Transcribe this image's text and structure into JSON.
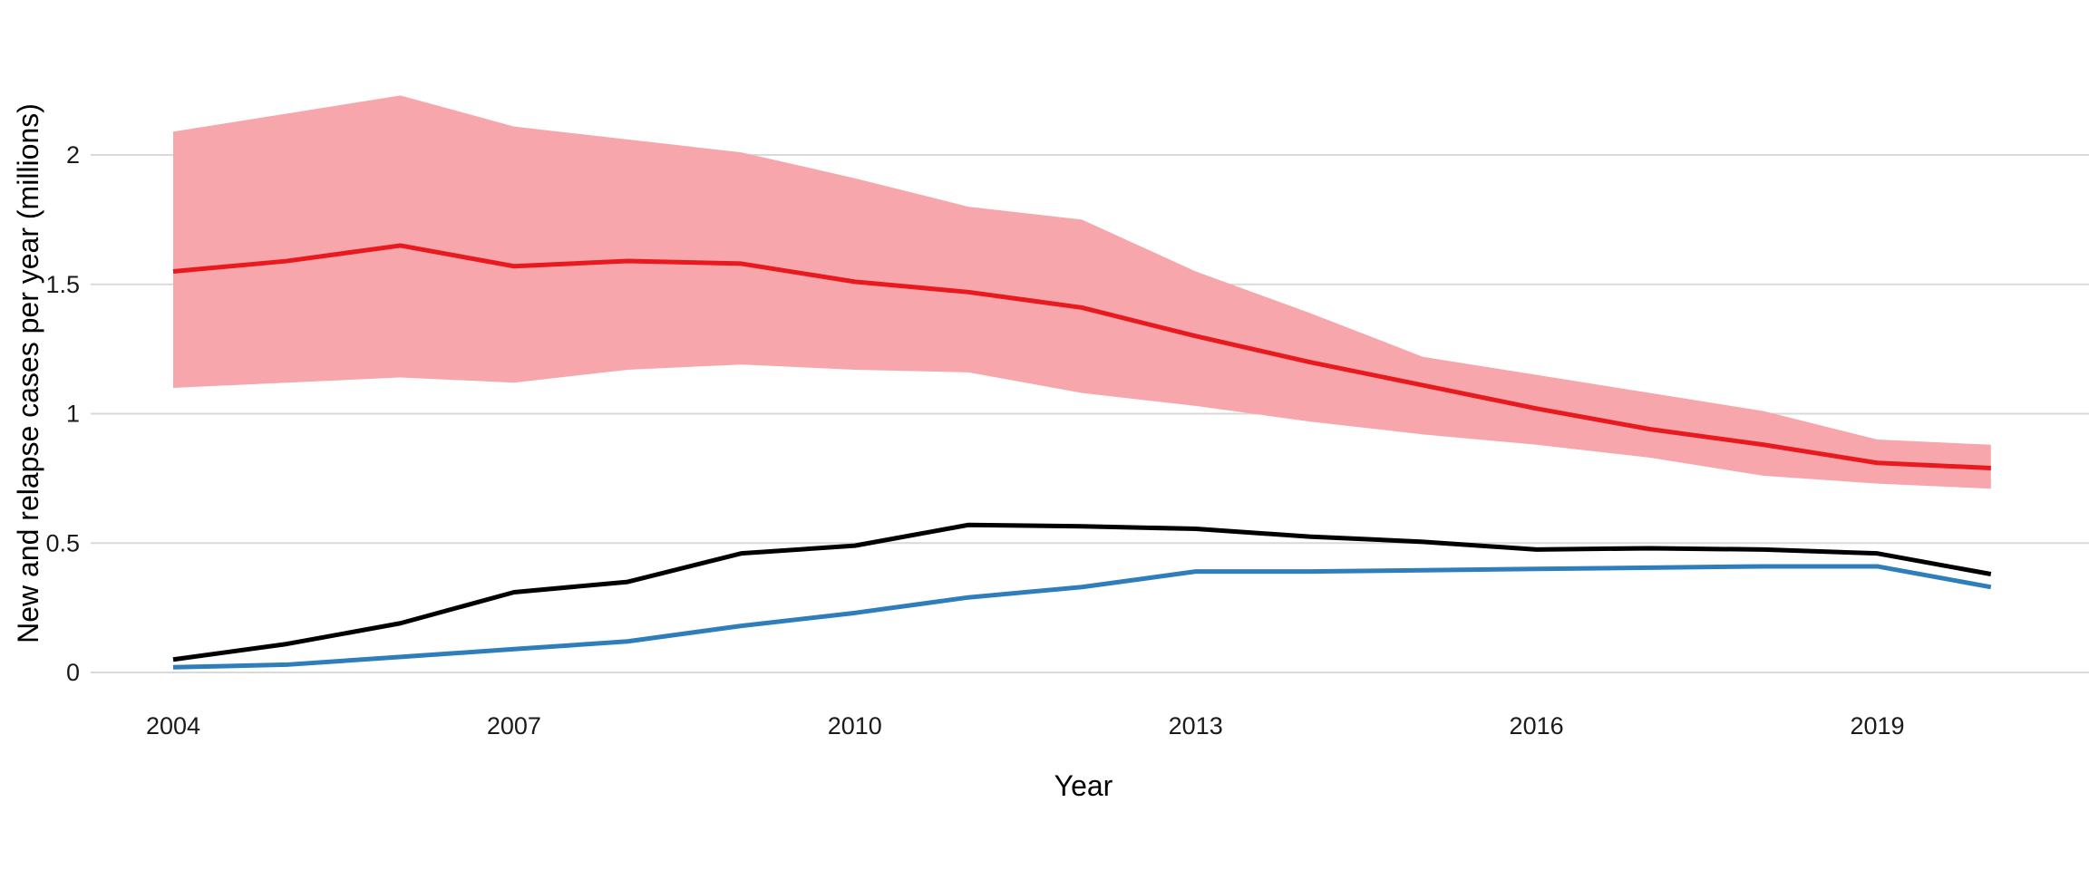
{
  "chart_data": {
    "type": "line",
    "title": "",
    "xlabel": "Year",
    "ylabel": "New and relapse cases per year (millions)",
    "x": [
      2004,
      2005,
      2006,
      2007,
      2008,
      2009,
      2010,
      2011,
      2012,
      2013,
      2014,
      2015,
      2016,
      2017,
      2018,
      2019,
      2020
    ],
    "x_tick_values": [
      2004,
      2007,
      2010,
      2013,
      2016,
      2019
    ],
    "x_tick_labels": [
      "2004",
      "2007",
      "2010",
      "2013",
      "2016",
      "2019"
    ],
    "y_tick_values": [
      0,
      0.5,
      1,
      1.5,
      2
    ],
    "y_tick_labels": [
      "0",
      "0.5",
      "1",
      "1.5",
      "2"
    ],
    "xlim": [
      2003.3,
      2020.9
    ],
    "ylim": [
      0,
      2.4
    ],
    "grid": "horizontal-only",
    "grid_color": "#d9d9d9",
    "background_color": "#ffffff",
    "legend": "none",
    "series": [
      {
        "name": "red-central-estimate-with-uncertainty-band",
        "type": "line-with-band",
        "color": "#e8191f",
        "band_color": "#f7a6ab",
        "values": [
          1.55,
          1.59,
          1.65,
          1.57,
          1.59,
          1.58,
          1.51,
          1.47,
          1.41,
          1.3,
          1.2,
          1.11,
          1.02,
          0.94,
          0.88,
          0.81,
          0.79
        ],
        "band_upper": [
          2.09,
          2.16,
          2.23,
          2.11,
          2.06,
          2.01,
          1.91,
          1.8,
          1.75,
          1.55,
          1.39,
          1.22,
          1.15,
          1.08,
          1.01,
          0.9,
          0.88
        ],
        "band_lower": [
          1.1,
          1.12,
          1.14,
          1.12,
          1.17,
          1.19,
          1.17,
          1.16,
          1.08,
          1.03,
          0.97,
          0.92,
          0.88,
          0.83,
          0.76,
          0.73,
          0.71
        ]
      },
      {
        "name": "black-line",
        "type": "line",
        "color": "#000000",
        "values": [
          0.05,
          0.11,
          0.19,
          0.31,
          0.35,
          0.46,
          0.49,
          0.57,
          0.565,
          0.555,
          0.525,
          0.505,
          0.475,
          0.48,
          0.475,
          0.46,
          0.38
        ]
      },
      {
        "name": "blue-line",
        "type": "line",
        "color": "#2e7ebc",
        "values": [
          0.02,
          0.03,
          0.06,
          0.09,
          0.12,
          0.18,
          0.23,
          0.29,
          0.33,
          0.39,
          0.39,
          0.395,
          0.4,
          0.405,
          0.41,
          0.41,
          0.33
        ]
      }
    ]
  }
}
